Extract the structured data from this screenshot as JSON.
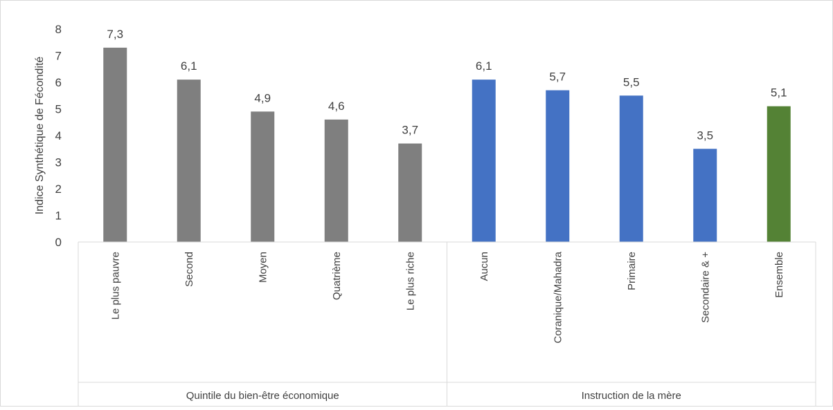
{
  "chart_data": {
    "type": "bar",
    "ylabel": "Indice Synthétique de Fécondité",
    "ylim": [
      0,
      8
    ],
    "yticks": [
      "0",
      "1",
      "2",
      "3",
      "4",
      "5",
      "6",
      "7",
      "8"
    ],
    "grid": false,
    "legend": "none",
    "categories": [
      "Le plus pauvre",
      "Second",
      "Moyen",
      "Quatrième",
      "Le plus riche",
      "Aucun",
      "Coranique/Mahadra",
      "Primaire",
      "Secondaire & +",
      "Ensemble"
    ],
    "values": [
      7.3,
      6.1,
      4.9,
      4.6,
      3.7,
      6.1,
      5.7,
      5.5,
      3.5,
      5.1
    ],
    "value_labels": [
      "7,3",
      "6,1",
      "4,9",
      "4,6",
      "3,7",
      "6,1",
      "5,7",
      "5,5",
      "3,5",
      "5,1"
    ],
    "bar_colors": [
      "#7f7f7f",
      "#7f7f7f",
      "#7f7f7f",
      "#7f7f7f",
      "#7f7f7f",
      "#4472c4",
      "#4472c4",
      "#4472c4",
      "#4472c4",
      "#548235"
    ],
    "groups": [
      {
        "label": "Quintile du bien-être économique",
        "count": 5
      },
      {
        "label": "Instruction de la mère",
        "count": 5
      }
    ]
  }
}
